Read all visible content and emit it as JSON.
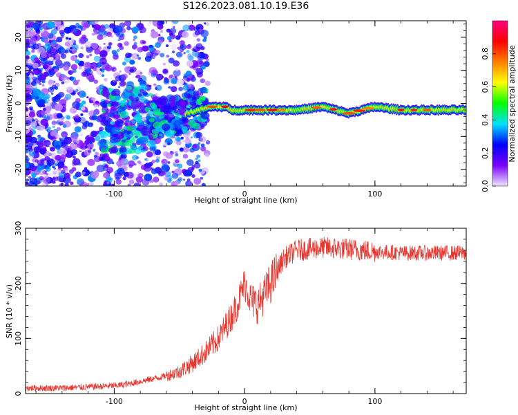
{
  "title": "S126.2023.081.10.19.E36",
  "chart_data": [
    {
      "type": "heatmap",
      "xlabel": "Height of straight line (km)",
      "ylabel": "Frequency (Hz)",
      "xlim": [
        -168,
        170
      ],
      "ylim": [
        -25,
        25
      ],
      "x_ticks": [
        -100,
        0,
        100
      ],
      "y_ticks": [
        -20,
        -10,
        0,
        10,
        20
      ],
      "colorbar": {
        "label": "Normalized spectral amplitude",
        "range": [
          0.0,
          1.0
        ],
        "ticks": [
          0.0,
          0.2,
          0.4,
          0.6,
          0.8
        ],
        "colormap": [
          "#f0e6ff",
          "#7a00ff",
          "#0000ff",
          "#00e0ff",
          "#00ff00",
          "#ffff00",
          "#ff8000",
          "#ff0000",
          "#ff0080"
        ]
      },
      "ridge_line": {
        "x": [
          -168,
          -120,
          -100,
          -80,
          -60,
          -45,
          -35,
          -25,
          -15,
          -10,
          0,
          10,
          20,
          30,
          40,
          60,
          70,
          80,
          90,
          100,
          120,
          140,
          160,
          170
        ],
        "y": [
          -4,
          -4,
          -5,
          -5,
          -4,
          -3,
          -2,
          -1,
          -1,
          -2,
          -2,
          -2,
          -2,
          -2,
          -2,
          -1,
          -2,
          -3,
          -2,
          -1,
          -2,
          -2,
          -2,
          -2
        ]
      }
    },
    {
      "type": "line",
      "xlabel": "Height of straight line (km)",
      "ylabel": "SNR (10 * v/v)",
      "xlim": [
        -168,
        170
      ],
      "ylim": [
        0,
        300
      ],
      "x_ticks": [
        -100,
        0,
        100
      ],
      "y_ticks": [
        0,
        100,
        200,
        300
      ],
      "line_color": "#e8352e",
      "series": [
        {
          "x": [
            -168,
            -140,
            -120,
            -100,
            -90,
            -80,
            -70,
            -60,
            -50,
            -40,
            -30,
            -20,
            -10,
            -5,
            0,
            5,
            10,
            20,
            30,
            40,
            60,
            80,
            100,
            120,
            140,
            160,
            170
          ],
          "values": [
            10,
            10,
            12,
            14,
            17,
            22,
            27,
            32,
            40,
            55,
            75,
            100,
            140,
            165,
            200,
            170,
            160,
            200,
            245,
            260,
            265,
            262,
            258,
            255,
            255,
            255,
            256
          ]
        }
      ]
    }
  ]
}
